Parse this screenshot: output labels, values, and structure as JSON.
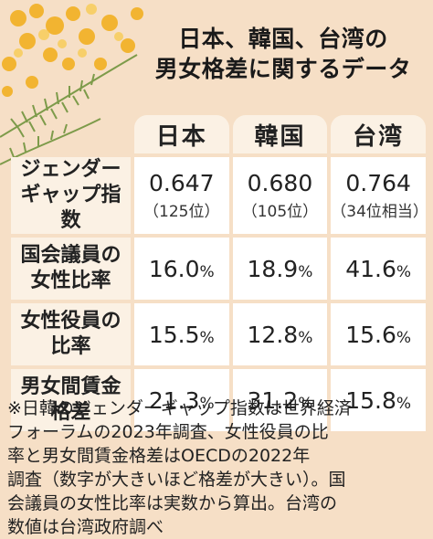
{
  "title_line1": "日本、韓国、台湾の",
  "title_line2": "男女格差に関するデータ",
  "columns": [
    "日本",
    "韓国",
    "台湾"
  ],
  "rows": [
    {
      "label_line1": "ジェンダー",
      "label_line2": "ギャップ指数",
      "values": [
        {
          "main": "0.647",
          "sub": "（125位）"
        },
        {
          "main": "0.680",
          "sub": "（105位）"
        },
        {
          "main": "0.764",
          "sub": "（34位相当）"
        }
      ]
    },
    {
      "label_line1": "国会議員の",
      "label_line2": "女性比率",
      "values": [
        {
          "main": "16.0",
          "unit": "%"
        },
        {
          "main": "18.9",
          "unit": "%"
        },
        {
          "main": "41.6",
          "unit": "%"
        }
      ]
    },
    {
      "label_line1": "女性役員の",
      "label_line2": "比率",
      "values": [
        {
          "main": "15.5",
          "unit": "%"
        },
        {
          "main": "12.8",
          "unit": "%"
        },
        {
          "main": "15.6",
          "unit": "%"
        }
      ]
    },
    {
      "label_line1": "男女間賃金",
      "label_line2": "格差",
      "values": [
        {
          "main": "21.3",
          "unit": "%"
        },
        {
          "main": "31.2",
          "unit": "%"
        },
        {
          "main": "15.8",
          "unit": "%"
        }
      ]
    }
  ],
  "note_lines": [
    "※日韓のジェンダーギャップ指数は世界経済",
    "フォーラムの2023年調査、女性役員の比",
    "率と男女間賃金格差はOECDの2022年",
    "調査（数字が大きいほど格差が大きい）。国",
    "会議員の女性比率は実数から算出。台湾の",
    "数値は台湾政府調べ"
  ],
  "colors": {
    "background": "#f6dfc6",
    "header_cell": "#fbf1e4",
    "value_cell": "#ffffff",
    "mimosa_flower": "#f2b431",
    "mimosa_leaf": "#7d9b4a"
  }
}
